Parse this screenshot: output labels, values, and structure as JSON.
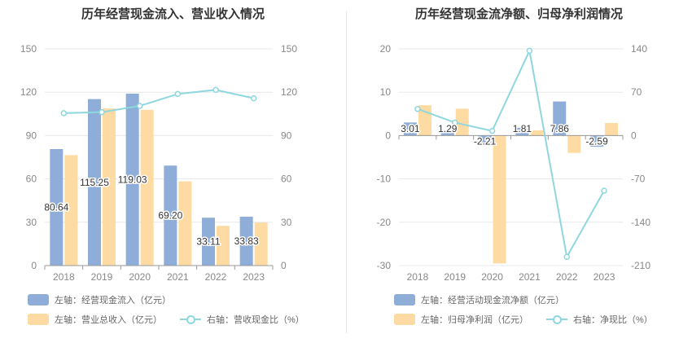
{
  "colors": {
    "blue": "#8eadd9",
    "orange": "#fddba3",
    "teal": "#8fd7de",
    "grid": "#e8e8e8",
    "axis": "#999999"
  },
  "left": {
    "title": "历年经营现金流入、营业收入情况",
    "legend": {
      "s1": "左轴：经营现金流入（亿元）",
      "s2": "左轴：营业总收入（亿元）",
      "s3": "右轴：营收现金比（%）"
    }
  },
  "right": {
    "title": "历年经营现金流净额、归母净利润情况",
    "legend": {
      "s1": "左轴：经营活动现金流净额（亿元）",
      "s2": "左轴：归母净利润（亿元）",
      "s3": "右轴：净现比（%）"
    }
  },
  "chart_data": [
    {
      "type": "bar",
      "title": "历年经营现金流入、营业收入情况",
      "categories": [
        "2018",
        "2019",
        "2020",
        "2021",
        "2022",
        "2023"
      ],
      "ylim_left": [
        0,
        150
      ],
      "yticks_left": [
        0,
        30,
        60,
        90,
        120,
        150
      ],
      "ylim_right": [
        0,
        150
      ],
      "yticks_right": [
        0,
        30,
        60,
        90,
        120,
        150
      ],
      "series": [
        {
          "name": "左轴：经营现金流入（亿元）",
          "axis": "left",
          "kind": "bar",
          "color": "#8eadd9",
          "values": [
            80.64,
            115.25,
            119.03,
            69.2,
            33.11,
            33.83
          ],
          "labels": [
            "80.64",
            "115.25",
            "119.03",
            "69.20",
            "33.11",
            "33.83"
          ]
        },
        {
          "name": "左轴：营业总收入（亿元）",
          "axis": "left",
          "kind": "bar",
          "color": "#fddba3",
          "values": [
            76.5,
            108.8,
            107.8,
            58.3,
            27.5,
            29.8
          ]
        },
        {
          "name": "右轴：营收现金比（%）",
          "axis": "right",
          "kind": "line",
          "color": "#8fd7de",
          "values": [
            105.5,
            106.2,
            110.5,
            118.8,
            121.6,
            115.8
          ]
        }
      ],
      "grid": true,
      "legend_position": "bottom-left"
    },
    {
      "type": "bar",
      "title": "历年经营现金流净额、归母净利润情况",
      "categories": [
        "2018",
        "2019",
        "2020",
        "2021",
        "2022",
        "2023"
      ],
      "ylim_left": [
        -30,
        20
      ],
      "yticks_left": [
        -30,
        -20,
        -10,
        0,
        10,
        20
      ],
      "ylim_right": [
        -210,
        140
      ],
      "yticks_right": [
        -210,
        -140,
        -70,
        0,
        70,
        140
      ],
      "series": [
        {
          "name": "左轴：经营活动现金流净额（亿元）",
          "axis": "left",
          "kind": "bar",
          "color": "#8eadd9",
          "values": [
            3.01,
            1.29,
            -2.21,
            1.81,
            7.86,
            -2.59
          ],
          "labels": [
            "3.01",
            "1.29",
            "-2.21",
            "1.81",
            "7.86",
            "-2.59"
          ]
        },
        {
          "name": "左轴：归母净利润（亿元）",
          "axis": "left",
          "kind": "bar",
          "color": "#fddba3",
          "values": [
            7.0,
            6.2,
            -29.5,
            1.2,
            -4.0,
            2.9
          ]
        },
        {
          "name": "右轴：净现比（%）",
          "axis": "right",
          "kind": "line",
          "color": "#8fd7de",
          "values": [
            43,
            21,
            7.5,
            137,
            -196,
            -89
          ]
        }
      ],
      "grid": true,
      "legend_position": "bottom-left"
    }
  ]
}
